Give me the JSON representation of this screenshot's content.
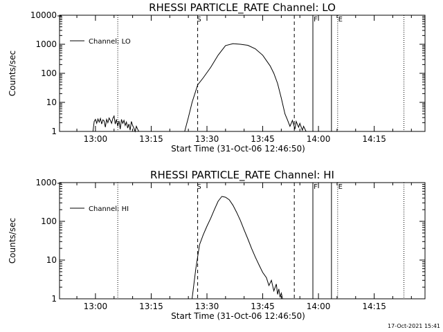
{
  "footer": {
    "timestamp": "17-Oct-2021 15:41"
  },
  "chart_data": [
    {
      "type": "line",
      "title": "RHESSI PARTICLE_RATE Channel: LO",
      "xlabel": "Start Time (31-Oct-06 12:46:50)",
      "ylabel": "Counts/sec",
      "yscale": "log",
      "xlim": [
        "12:50:20",
        "14:28:40"
      ],
      "ylim": [
        1,
        10000
      ],
      "x_tick_labels": [
        "13:00",
        "13:15",
        "13:30",
        "13:45",
        "14:00",
        "14:15"
      ],
      "y_tick_labels": [
        "1",
        "10",
        "100",
        "1000",
        "10000"
      ],
      "legend": {
        "position": "top-left",
        "entries": [
          "Channel: LO"
        ]
      },
      "series": [
        {
          "name": "Channel: LO",
          "segments": [
            {
              "x": [
                "12:59:20",
                "12:59:40",
                "13:00:00",
                "13:00:20",
                "13:00:40",
                "13:01:00",
                "13:01:20",
                "13:01:40",
                "13:02:00",
                "13:02:20",
                "13:02:40",
                "13:03:00",
                "13:03:20",
                "13:03:40",
                "13:04:00",
                "13:04:20",
                "13:04:40",
                "13:05:00",
                "13:05:20",
                "13:05:40",
                "13:06:00",
                "13:06:20",
                "13:06:40",
                "13:07:00",
                "13:07:20",
                "13:07:40",
                "13:08:00",
                "13:08:20",
                "13:08:40",
                "13:09:00",
                "13:09:20",
                "13:09:40",
                "13:10:00",
                "13:10:20",
                "13:10:40",
                "13:11:00",
                "13:11:20",
                "13:11:40",
                "13:12:00"
              ],
              "y": [
                1.0,
                2.2,
                2.6,
                1.9,
                2.7,
                2.1,
                2.8,
                1.8,
                2.5,
                2.3,
                1.4,
                2.6,
                2.0,
                2.9,
                2.4,
                1.9,
                2.8,
                3.4,
                1.8,
                2.6,
                1.5,
                2.3,
                1.2,
                2.6,
                1.9,
                2.4,
                1.6,
                2.1,
                1.3,
                1.8,
                1.1,
                2.2,
                1.6,
                1.3,
                1.0,
                1.5,
                1.2,
                1.0,
                1.0
              ]
            },
            {
              "x": [
                "13:24:00",
                "13:25:00",
                "13:26:00",
                "13:27:30",
                "13:29:00",
                "13:31:00",
                "13:33:00",
                "13:35:00",
                "13:37:00",
                "13:39:00",
                "13:41:00",
                "13:43:00",
                "13:45:00",
                "13:47:00",
                "13:48:00",
                "13:49:00",
                "13:50:00",
                "13:51:00",
                "13:51:40",
                "13:52:20",
                "13:53:00",
                "13:53:40",
                "13:54:00",
                "13:54:40",
                "13:55:00",
                "13:55:40",
                "13:56:00",
                "13:56:40",
                "13:57:00"
              ],
              "y": [
                1.0,
                3.0,
                10.0,
                40.0,
                70.0,
                160.0,
                420.0,
                900.0,
                1050.0,
                1000.0,
                920.0,
                700.0,
                420.0,
                180.0,
                100.0,
                45.0,
                14.0,
                4.0,
                2.5,
                1.5,
                2.4,
                1.2,
                2.2,
                1.4,
                1.9,
                1.1,
                1.5,
                1.0,
                1.0
              ]
            }
          ]
        }
      ],
      "markers": {
        "dotted_x": [
          "13:06:00",
          "14:23:00"
        ],
        "dashed_x": [
          {
            "x": "13:27:30",
            "label": "S"
          },
          {
            "x": "13:53:30",
            "label": ""
          }
        ],
        "solid_x": [
          {
            "x": "13:58:30",
            "label": "F"
          },
          {
            "x": "14:03:30",
            "label": ""
          }
        ],
        "dotted_x_labeled": [
          {
            "x": "14:05:10",
            "label": "E"
          }
        ]
      }
    },
    {
      "type": "line",
      "title": "RHESSI PARTICLE_RATE Channel: HI",
      "xlabel": "Start Time (31-Oct-06 12:46:50)",
      "ylabel": "Counts/sec",
      "yscale": "log",
      "xlim": [
        "12:50:20",
        "14:28:40"
      ],
      "ylim": [
        1,
        1000
      ],
      "x_tick_labels": [
        "13:00",
        "13:15",
        "13:30",
        "13:45",
        "14:00",
        "14:15"
      ],
      "y_tick_labels": [
        "1",
        "10",
        "100",
        "1000"
      ],
      "legend": {
        "position": "top-left",
        "entries": [
          "Channel: HI"
        ]
      },
      "series": [
        {
          "name": "Channel: HI",
          "segments": [
            {
              "x": [
                "13:26:00",
                "13:27:00",
                "13:28:00",
                "13:29:00",
                "13:30:00",
                "13:31:00",
                "13:32:00",
                "13:33:00",
                "13:34:00",
                "13:35:00",
                "13:36:00",
                "13:37:00",
                "13:38:00",
                "13:39:00",
                "13:40:00",
                "13:41:00",
                "13:42:00",
                "13:43:00",
                "13:44:00",
                "13:45:00",
                "13:46:00",
                "13:46:40",
                "13:47:20",
                "13:48:00",
                "13:48:40",
                "13:49:00",
                "13:49:20",
                "13:49:40",
                "13:50:00",
                "13:50:20"
              ],
              "y": [
                1.0,
                6.0,
                25.0,
                45.0,
                75.0,
                120.0,
                200.0,
                330.0,
                440.0,
                420.0,
                360.0,
                260.0,
                170.0,
                105.0,
                60.0,
                35.0,
                20.0,
                12.0,
                7.5,
                4.8,
                3.5,
                2.2,
                3.0,
                1.6,
                2.4,
                1.3,
                1.8,
                1.1,
                1.4,
                1.0
              ]
            }
          ]
        }
      ],
      "markers": {
        "dotted_x": [
          "13:06:00",
          "14:23:00"
        ],
        "dashed_x": [
          {
            "x": "13:27:30",
            "label": "S"
          },
          {
            "x": "13:53:30",
            "label": ""
          }
        ],
        "solid_x": [
          {
            "x": "13:58:30",
            "label": "F"
          },
          {
            "x": "14:03:30",
            "label": ""
          }
        ],
        "dotted_x_labeled": [
          {
            "x": "14:05:10",
            "label": "E"
          }
        ]
      }
    }
  ]
}
